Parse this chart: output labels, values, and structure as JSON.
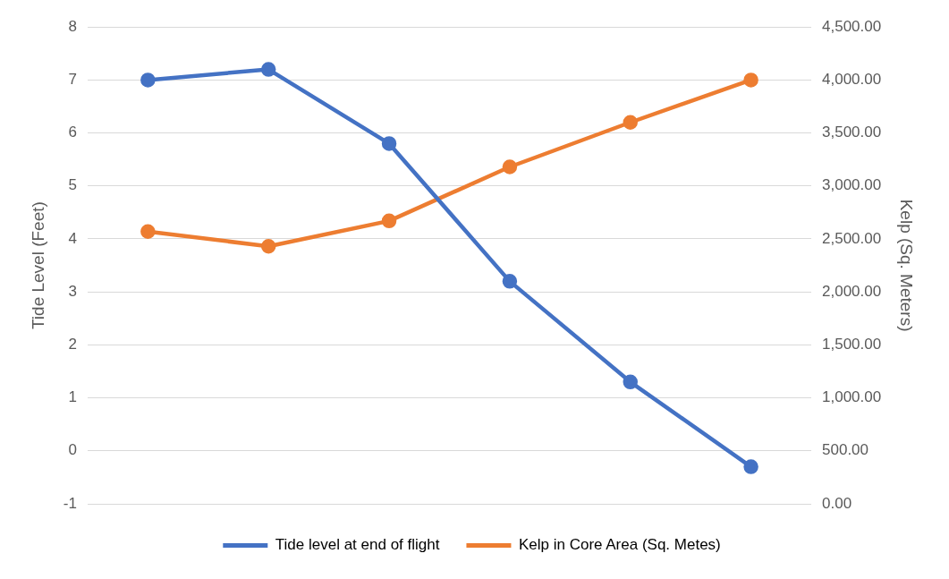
{
  "chart_data": {
    "type": "line",
    "ylabel": "Tide Level (Feet)",
    "y2label": "Kelp (Sq. Meters)",
    "categories": [
      null,
      null,
      null,
      null,
      null,
      null
    ],
    "series": [
      {
        "name": "Tide level at end of flight",
        "color": "#4472c4",
        "values": [
          7.0,
          7.2,
          5.8,
          3.2,
          1.3,
          -0.3
        ]
      },
      {
        "name": "Kelp in Core Area (Sq. Metes)",
        "color": "#ed7d31",
        "axis": "y2",
        "values": [
          2570,
          2430,
          2670,
          3180,
          3600,
          4000
        ]
      }
    ],
    "ylim": [
      -1,
      8
    ],
    "yticks": [
      -1,
      0,
      1,
      2,
      3,
      4,
      5,
      6,
      7,
      8
    ],
    "y2lim": [
      0,
      4500
    ],
    "y2ticks": [
      {
        "value": 0,
        "label": "0.00"
      },
      {
        "value": 500,
        "label": "500.00"
      },
      {
        "value": 1000,
        "label": "1,000.00"
      },
      {
        "value": 1500,
        "label": "1,500.00"
      },
      {
        "value": 2000,
        "label": "2,000.00"
      },
      {
        "value": 2500,
        "label": "2,500.00"
      },
      {
        "value": 3000,
        "label": "3,000.00"
      },
      {
        "value": 3500,
        "label": "3,500.00"
      },
      {
        "value": 4000,
        "label": "4,000.00"
      },
      {
        "value": 4500,
        "label": "4,500.00"
      }
    ],
    "grid": "y",
    "legend": "bottom",
    "marker": "circle",
    "line_style": "solid"
  }
}
